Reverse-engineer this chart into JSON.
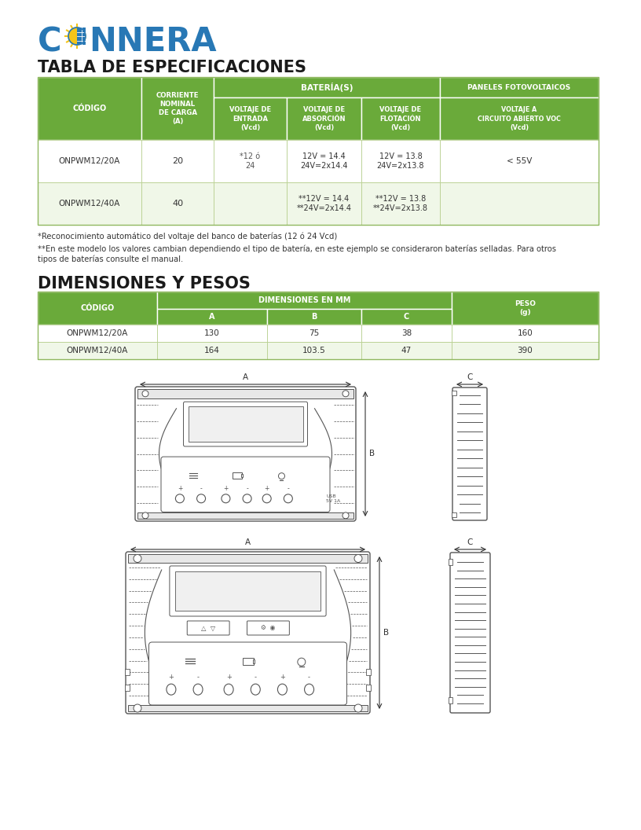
{
  "logo_color": "#2878b5",
  "sun_yellow": "#f5c518",
  "title1": "TABLA DE ESPECIFICACIONES",
  "title2": "DIMENSIONES Y PESOS",
  "green_dark": "#6aaa3a",
  "green_light": "#f0f7e8",
  "table1_rows": [
    [
      "ONPWM12/20A",
      "20",
      "*12 ó\n24",
      "12V = 14.4\n24V=2x14.4",
      "12V = 13.8\n24V=2x13.8",
      "< 55V"
    ],
    [
      "ONPWM12/40A",
      "40",
      "",
      "**12V = 14.4\n**24V=2x14.4",
      "**12V = 13.8\n**24V=2x13.8",
      ""
    ]
  ],
  "footnote1": "*Reconocimiento automático del voltaje del banco de baterías (12 ó 24 Vcd)",
  "footnote2": "**En este modelo los valores cambian dependiendo el tipo de batería, en este ejemplo se consideraron baterías selladas. Para otros\ntipos de baterías consulte el manual.",
  "table2_rows": [
    [
      "ONPWM12/20A",
      "130",
      "75",
      "38",
      "160"
    ],
    [
      "ONPWM12/40A",
      "164",
      "103.5",
      "47",
      "390"
    ]
  ],
  "bg_color": "#ffffff",
  "text_dark": "#333333",
  "line_color": "#555555"
}
